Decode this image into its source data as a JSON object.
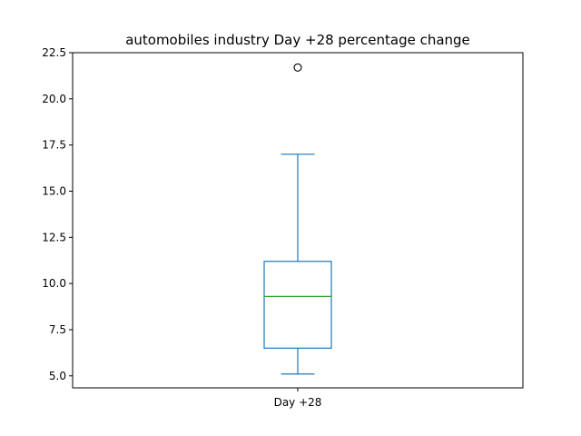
{
  "chart_data": {
    "type": "box",
    "title": "automobiles industry Day +28 percentage change",
    "xlabel": "",
    "ylabel": "",
    "categories": [
      "Day +28"
    ],
    "ylim": [
      4.35,
      22.5
    ],
    "yticks": [
      5.0,
      7.5,
      10.0,
      12.5,
      15.0,
      17.5,
      20.0,
      22.5
    ],
    "ytick_labels": [
      "5.0",
      "7.5",
      "10.0",
      "12.5",
      "15.0",
      "17.5",
      "20.0",
      "22.5"
    ],
    "grid": false,
    "boxes": [
      {
        "name": "Day +28",
        "whisker_low": 5.1,
        "q1": 6.5,
        "median": 9.3,
        "q3": 11.2,
        "whisker_high": 17.0,
        "outliers": [
          21.7
        ]
      }
    ],
    "colors": {
      "box": "#1f77b4",
      "median": "#2ca02c",
      "outlier": "#000000",
      "axes": "#000000"
    }
  }
}
